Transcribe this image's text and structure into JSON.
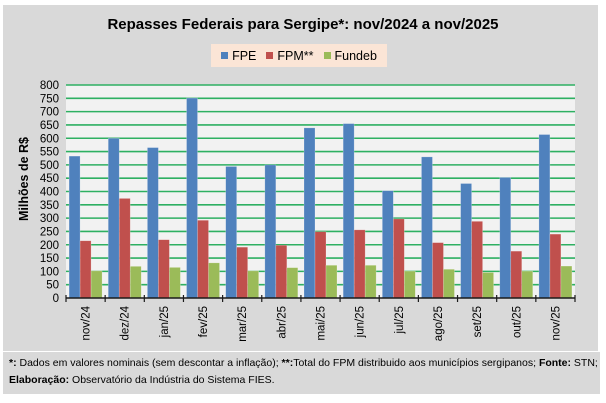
{
  "chart_data": {
    "type": "bar",
    "title": "Repasses Federais para Sergipe*: nov/2024 a nov/2025",
    "xlabel": "",
    "ylabel": "Milhões de R$",
    "ylim": [
      0,
      800
    ],
    "yticks": [
      0,
      50,
      100,
      150,
      200,
      250,
      300,
      350,
      400,
      450,
      500,
      550,
      600,
      650,
      700,
      750,
      800
    ],
    "grid": true,
    "legend_position": "top",
    "categories": [
      "nov/24",
      "dez/24",
      "jan/25",
      "fev/25",
      "mar/25",
      "abr/25",
      "mai/25",
      "jun/25",
      "jul/25",
      "ago/25",
      "set/25",
      "out/25",
      "nov/25"
    ],
    "series": [
      {
        "name": "FPE",
        "color": "#4f81bd",
        "values": [
          533,
          600,
          565,
          751,
          494,
          500,
          639,
          655,
          403,
          530,
          430,
          453,
          614
        ]
      },
      {
        "name": "FPM**",
        "color": "#c0504d",
        "values": [
          215,
          374,
          219,
          292,
          191,
          198,
          249,
          256,
          297,
          208,
          288,
          176,
          240
        ]
      },
      {
        "name": "Fundeb",
        "color": "#9bbb59",
        "values": [
          102,
          119,
          115,
          132,
          102,
          114,
          123,
          123,
          101,
          108,
          96,
          101,
          120
        ]
      }
    ]
  },
  "colors": {
    "gridline": "#2eb062",
    "plot_bg": "#f2f2f2",
    "axis": "#1a1a1a"
  },
  "footer": {
    "line1": {
      "mark1": "*:",
      "text1": " Dados em valores nominais (sem descontar a inflação); ",
      "mark2": "**:",
      "text2": "Total  do FPM distribuido aos municípios sergipanos; ",
      "mark3": "Fonte:",
      "text3": " STN;"
    },
    "line2": {
      "mark1": "Elaboração:",
      "text1": " Observatório da Indústria do Sistema FIES."
    }
  }
}
